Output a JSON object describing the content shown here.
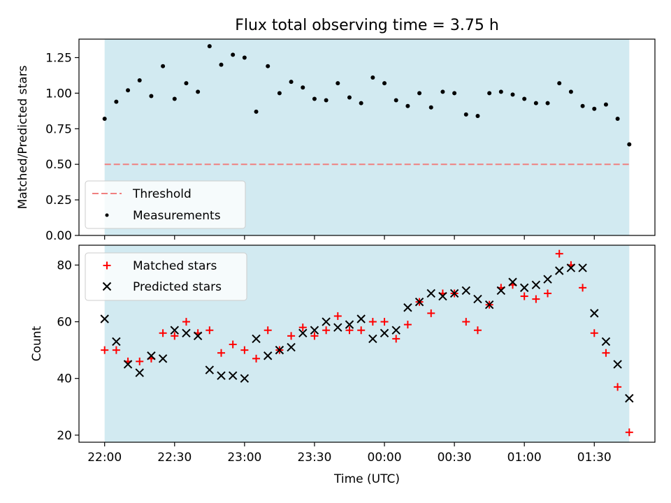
{
  "chart_data": {
    "type": "scatter",
    "title": "Flux total observing time = 3.75 h",
    "xlabel": "Time (UTC)",
    "x_tick_labels": [
      "22:00",
      "22:30",
      "23:00",
      "23:30",
      "00:00",
      "00:30",
      "01:00",
      "01:30"
    ],
    "x_ticks_min": [
      0,
      30,
      60,
      90,
      120,
      150,
      180,
      210
    ],
    "xlim_min": [
      -11,
      236
    ],
    "observing_window_min": [
      0,
      225
    ],
    "colors": {
      "window": "#add8e6",
      "threshold": "#f08080",
      "matched": "#ff0000",
      "predicted": "#000000",
      "ratio": "#000000"
    },
    "top": {
      "ylabel": "Matched/Predicted stars",
      "ylim": [
        0,
        1.38
      ],
      "y_tick_labels": [
        "0.00",
        "0.25",
        "0.50",
        "0.75",
        "1.00",
        "1.25"
      ],
      "y_ticks": [
        0,
        0.25,
        0.5,
        0.75,
        1.0,
        1.25
      ],
      "threshold": 0.5,
      "legend": [
        "Threshold",
        "Measurements"
      ],
      "legend_loc": "lower left",
      "ratio_series": {
        "name": "Measurements",
        "x_min": [
          0,
          5,
          10,
          15,
          20,
          25,
          30,
          35,
          40,
          45,
          50,
          55,
          60,
          65,
          70,
          75,
          80,
          85,
          90,
          95,
          100,
          105,
          110,
          115,
          120,
          125,
          130,
          135,
          140,
          145,
          150,
          155,
          160,
          165,
          170,
          175,
          180,
          185,
          190,
          195,
          200,
          205,
          210,
          215,
          220,
          225
        ],
        "y": [
          0.82,
          0.94,
          1.02,
          1.09,
          0.98,
          1.19,
          0.96,
          1.07,
          1.01,
          1.33,
          1.2,
          1.27,
          1.25,
          0.87,
          1.19,
          1.0,
          1.08,
          1.04,
          0.96,
          0.95,
          1.07,
          0.97,
          0.93,
          1.11,
          1.07,
          0.95,
          0.91,
          1.0,
          0.9,
          1.01,
          1.0,
          0.85,
          0.84,
          1.0,
          1.01,
          0.99,
          0.96,
          0.93,
          0.93,
          1.07,
          1.01,
          0.91,
          0.89,
          0.92,
          0.82,
          0.64
        ]
      }
    },
    "bottom": {
      "ylabel": "Count",
      "ylim": [
        17.5,
        87
      ],
      "y_tick_labels": [
        "20",
        "40",
        "60",
        "80"
      ],
      "y_ticks": [
        20,
        40,
        60,
        80
      ],
      "legend": [
        "Matched stars",
        "Predicted stars"
      ],
      "legend_loc": "upper left",
      "matched": {
        "name": "Matched stars",
        "x_min": [
          0,
          5,
          10,
          15,
          20,
          25,
          30,
          35,
          40,
          45,
          50,
          55,
          60,
          65,
          70,
          75,
          80,
          85,
          90,
          95,
          100,
          105,
          110,
          115,
          120,
          125,
          130,
          135,
          140,
          145,
          150,
          155,
          160,
          165,
          170,
          175,
          180,
          185,
          190,
          195,
          200,
          205,
          210,
          215,
          220,
          225
        ],
        "y": [
          50,
          50,
          46,
          46,
          47,
          56,
          55,
          60,
          56,
          57,
          49,
          52,
          50,
          47,
          57,
          50,
          55,
          58,
          55,
          57,
          62,
          57,
          57,
          60,
          60,
          54,
          59,
          67,
          63,
          70,
          70,
          60,
          57,
          66,
          72,
          73,
          69,
          68,
          70,
          84,
          80,
          72,
          56,
          49,
          37,
          21
        ]
      },
      "predicted": {
        "name": "Predicted stars",
        "x_min": [
          0,
          5,
          10,
          15,
          20,
          25,
          30,
          35,
          40,
          45,
          50,
          55,
          60,
          65,
          70,
          75,
          80,
          85,
          90,
          95,
          100,
          105,
          110,
          115,
          120,
          125,
          130,
          135,
          140,
          145,
          150,
          155,
          160,
          165,
          170,
          175,
          180,
          185,
          190,
          195,
          200,
          205,
          210,
          215,
          220,
          225
        ],
        "y": [
          61,
          53,
          45,
          42,
          48,
          47,
          57,
          56,
          55,
          43,
          41,
          41,
          40,
          54,
          48,
          50,
          51,
          56,
          57,
          60,
          58,
          59,
          61,
          54,
          56,
          57,
          65,
          67,
          70,
          69,
          70,
          71,
          68,
          66,
          71,
          74,
          72,
          73,
          75,
          78,
          79,
          79,
          63,
          53,
          45,
          33
        ]
      }
    }
  }
}
